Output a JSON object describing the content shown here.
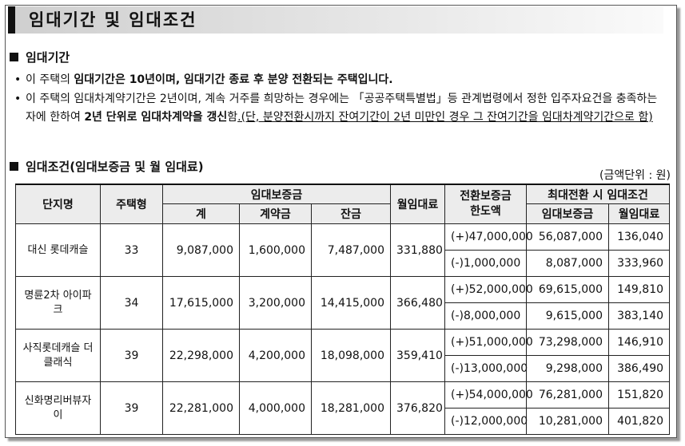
{
  "title": "임대기간 및 임대조건",
  "section1": {
    "heading": "임대기간",
    "bullet1": {
      "dot": "•",
      "text_a": "이 주택의 ",
      "text_b": "임대기간은 10년이며, 임대기간 종료 후 분양 전환되는 주택입니다."
    },
    "bullet2": {
      "dot": "•",
      "text_a": "이 주택의 임대차계약기간은 2년이며, 계속 거주를 희망하는 경우에는 「공공주택특별법」등 관계법령에서 정한 입주자요건을 충족하는 자에 한하여 ",
      "text_b": "2년 단위로 임대차계약을 갱신",
      "text_c": "함",
      "text_d": ".(단, 분양전환시까지 잔여기간이 2년 미만인 경우 그 잔여기간을 임대차계약기간으로 함)"
    }
  },
  "section2": {
    "heading": "임대조건(임대보증금 및 월 임대료)",
    "unit": "(금액단위 : 원)"
  },
  "table": {
    "headers": {
      "complex": "단지명",
      "type": "주택형",
      "deposit": "임대보증금",
      "deposit_total": "계",
      "deposit_contract": "계약금",
      "deposit_balance": "잔금",
      "monthly": "월임대료",
      "conv_limit_1": "전환보증금",
      "conv_limit_2": "한도액",
      "max_conv": "최대전환 시 임대조건",
      "max_deposit": "임대보증금",
      "max_monthly": "월임대료"
    },
    "rows": [
      {
        "name": "대신 롯데캐슬",
        "type": "33",
        "total": "9,087,000",
        "contract": "1,600,000",
        "balance": "7,487,000",
        "monthly": "331,880",
        "plus": {
          "limit": "(+)47,000,000",
          "deposit": "56,087,000",
          "monthly": "136,040"
        },
        "minus": {
          "limit": "(-)1,000,000",
          "deposit": "8,087,000",
          "monthly": "333,960"
        }
      },
      {
        "name": "명륜2차 아이파크",
        "type": "34",
        "total": "17,615,000",
        "contract": "3,200,000",
        "balance": "14,415,000",
        "monthly": "366,480",
        "plus": {
          "limit": "(+)52,000,000",
          "deposit": "69,615,000",
          "monthly": "149,810"
        },
        "minus": {
          "limit": "(-)8,000,000",
          "deposit": "9,615,000",
          "monthly": "383,140"
        }
      },
      {
        "name": "사직롯데캐슬 더클래식",
        "type": "39",
        "total": "22,298,000",
        "contract": "4,200,000",
        "balance": "18,098,000",
        "monthly": "359,410",
        "plus": {
          "limit": "(+)51,000,000",
          "deposit": "73,298,000",
          "monthly": "146,910"
        },
        "minus": {
          "limit": "(-)13,000,000",
          "deposit": "9,298,000",
          "monthly": "386,490"
        }
      },
      {
        "name": "신화명리버뷰자이",
        "type": "39",
        "total": "22,281,000",
        "contract": "4,000,000",
        "balance": "18,281,000",
        "monthly": "376,820",
        "plus": {
          "limit": "(+)54,000,000",
          "deposit": "76,281,000",
          "monthly": "151,820"
        },
        "minus": {
          "limit": "(-)12,000,000",
          "deposit": "10,281,000",
          "monthly": "401,820"
        }
      }
    ]
  }
}
